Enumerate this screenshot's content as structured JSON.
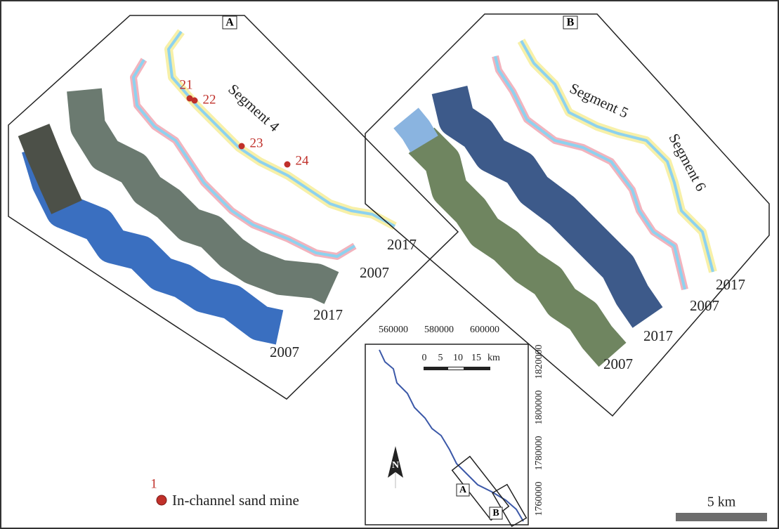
{
  "panel_a": {
    "label": "A",
    "segment": "Segment 4",
    "mines": [
      "21",
      "22",
      "23",
      "24"
    ],
    "year_labels": [
      "2017",
      "2007",
      "2017",
      "2007"
    ]
  },
  "panel_b": {
    "label": "B",
    "segments": [
      "Segment 5",
      "Segment 6"
    ],
    "year_labels": [
      "2017",
      "2007",
      "2017",
      "2007"
    ]
  },
  "inset": {
    "x_ticks": [
      "560000",
      "580000",
      "600000"
    ],
    "y_ticks": [
      "1820000",
      "1800000",
      "1780000",
      "1760000"
    ],
    "scale_ticks": [
      "0",
      "5",
      "10",
      "15"
    ],
    "scale_unit": "km",
    "north": "N",
    "boxes": [
      "A",
      "B"
    ]
  },
  "legend": {
    "number": "1",
    "label": "In-channel sand mine"
  },
  "scale_bar": "5 km"
}
